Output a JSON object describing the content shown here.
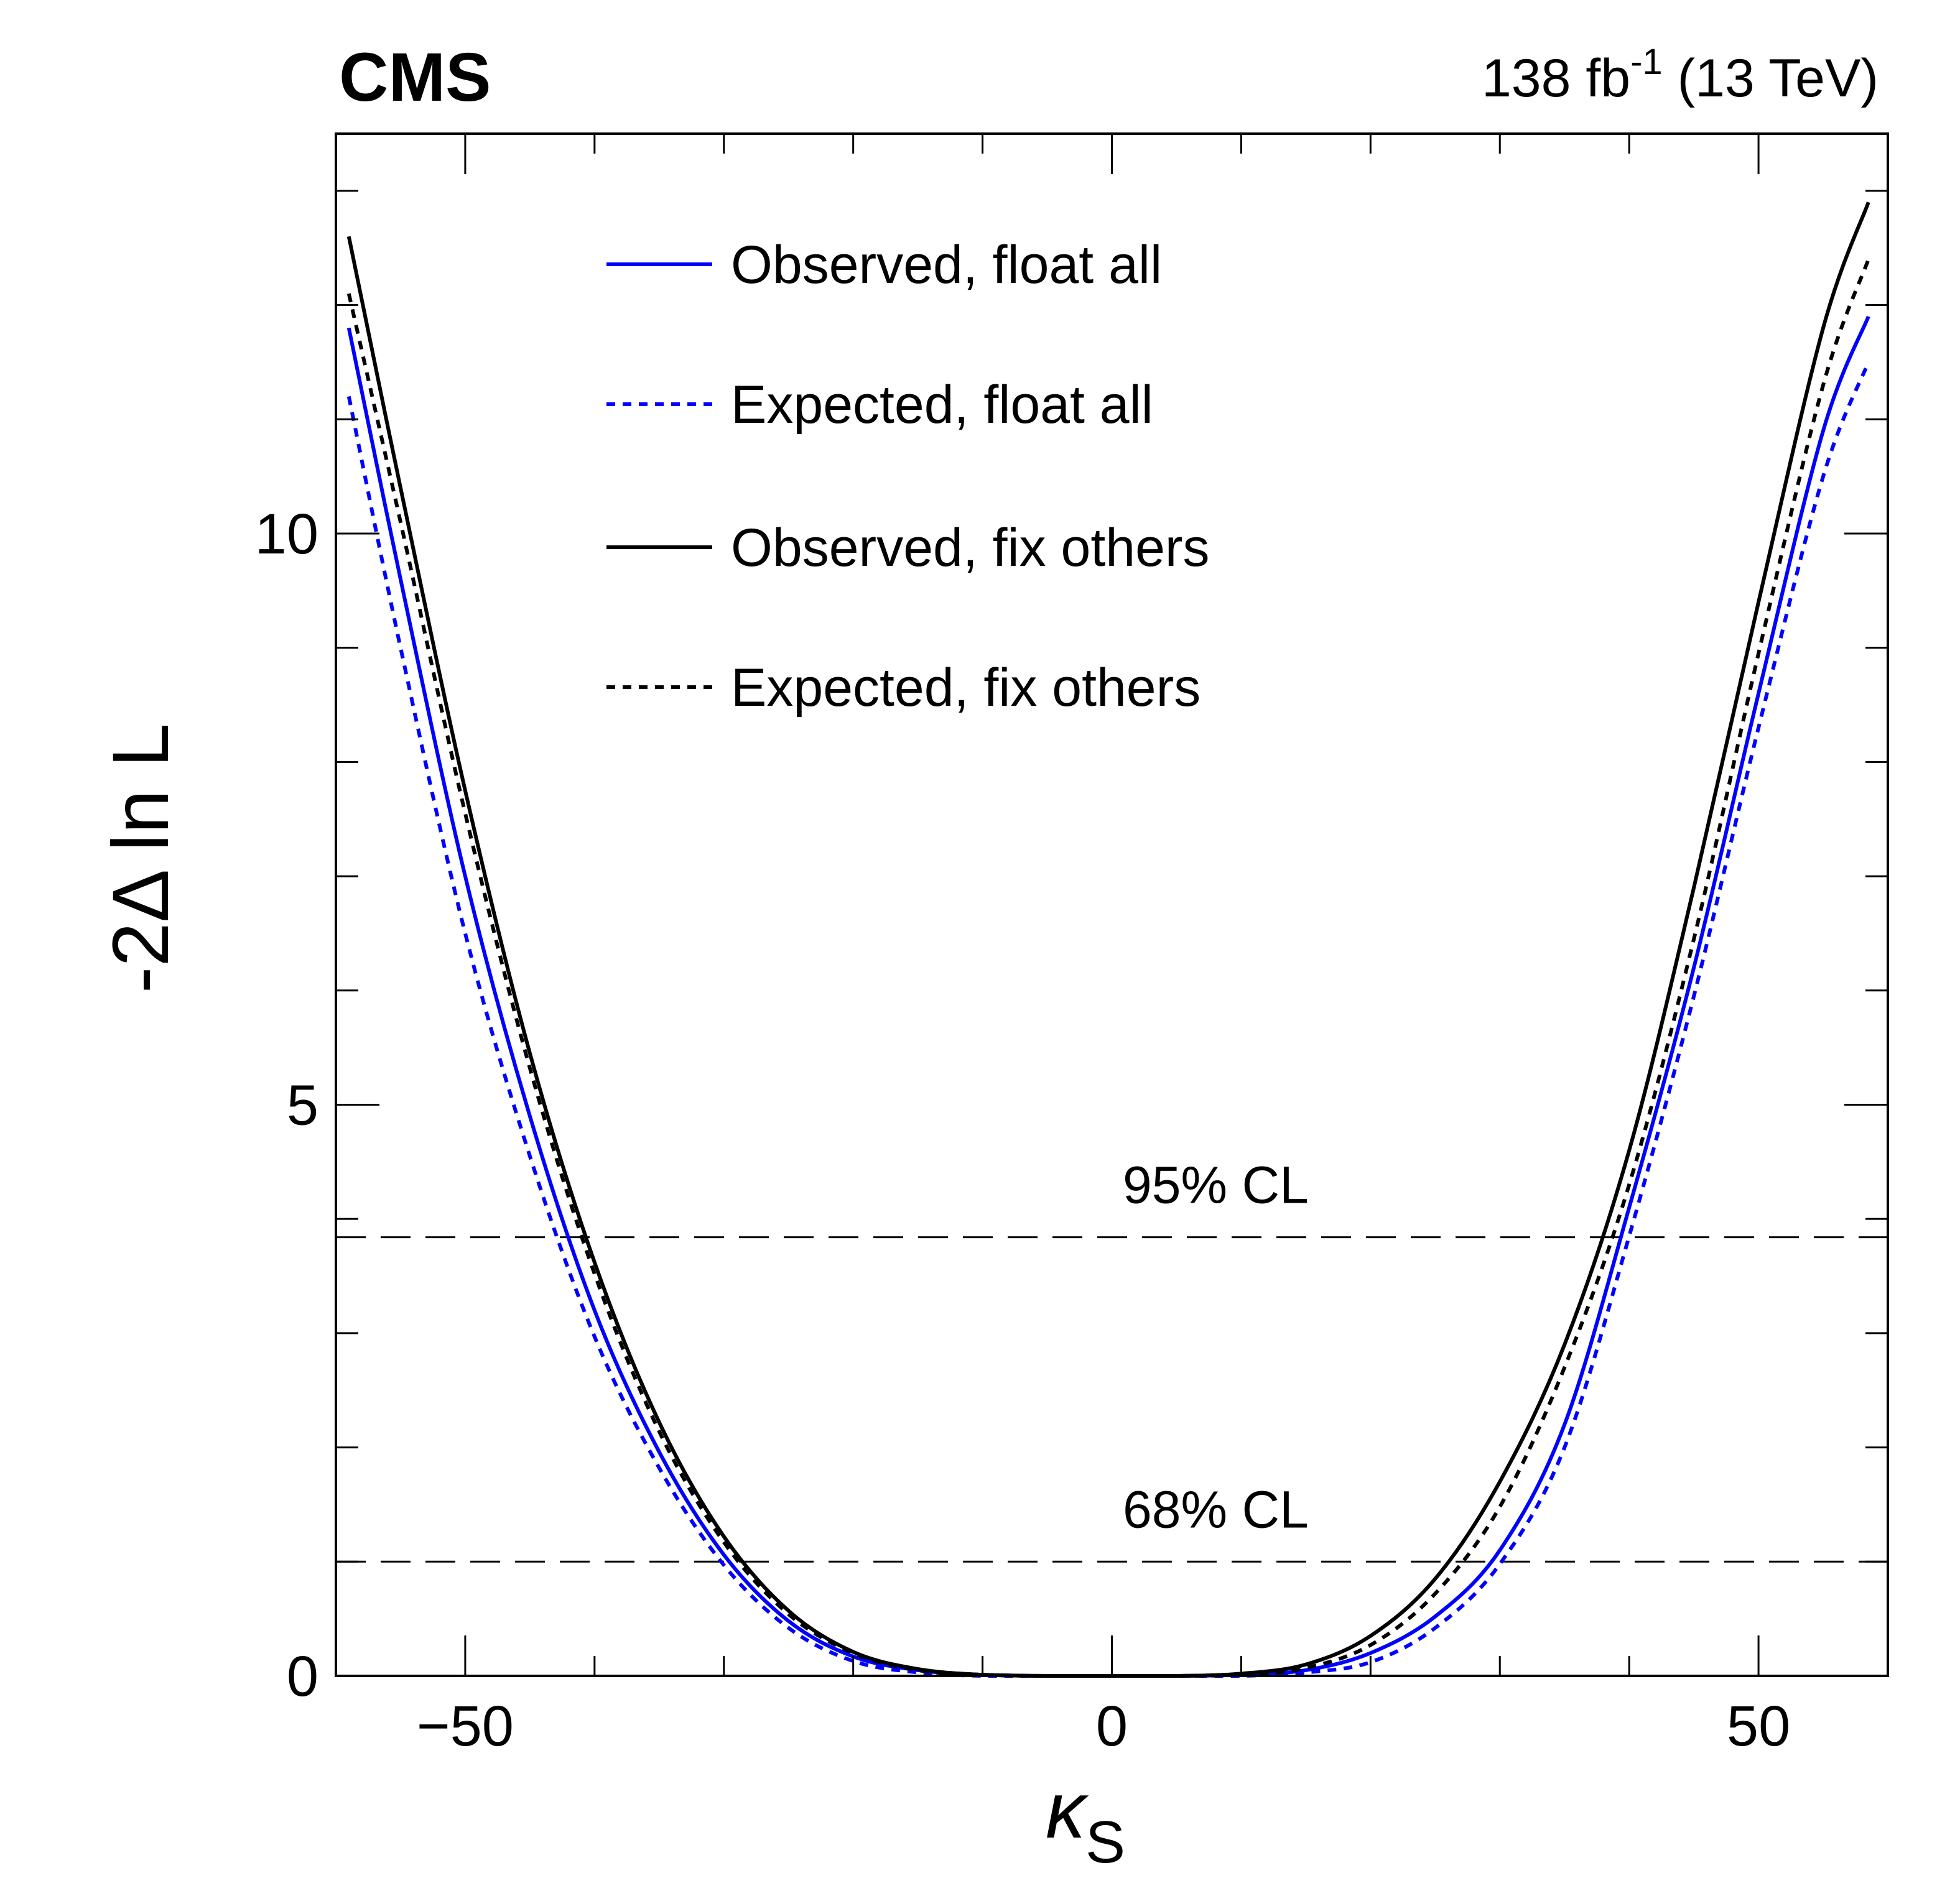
{
  "header": {
    "experiment": "CMS",
    "lumi_value": "138 fb",
    "lumi_exp": "-1",
    "energy": " (13 TeV)"
  },
  "chart_data": {
    "type": "line",
    "title": "",
    "xlabel_symbol": "κ",
    "xlabel_sub": "S",
    "ylabel": "-2Δ ln L",
    "xlim": [
      -60,
      60
    ],
    "ylim": [
      0,
      13.5
    ],
    "x_ticks": [
      {
        "value": -50,
        "label": "−50"
      },
      {
        "value": 0,
        "label": "0"
      },
      {
        "value": 50,
        "label": "50"
      }
    ],
    "y_ticks": [
      {
        "value": 0,
        "label": "0"
      },
      {
        "value": 5,
        "label": "5"
      },
      {
        "value": 10,
        "label": "10"
      }
    ],
    "reference_lines": [
      {
        "y": 1.0,
        "label": "68% CL"
      },
      {
        "y": 3.84,
        "label": "95% CL"
      }
    ],
    "legend_position": "top-center",
    "series": [
      {
        "name": "Observed, float all",
        "color": "#0000ff",
        "dash": "solid",
        "x": [
          -59,
          -55,
          -50,
          -45,
          -40,
          -35,
          -30,
          -25,
          -20,
          -15,
          -10,
          -5,
          0,
          5,
          10,
          15,
          20,
          25,
          30,
          35,
          40,
          45,
          50,
          55,
          58.5
        ],
        "y": [
          11.8,
          9.6,
          7.0,
          4.9,
          3.2,
          1.96,
          1.06,
          0.48,
          0.17,
          0.05,
          0.01,
          0.0,
          0.0,
          0.0,
          0.01,
          0.05,
          0.2,
          0.52,
          1.1,
          2.2,
          4.1,
          6.2,
          8.6,
          10.9,
          11.9
        ]
      },
      {
        "name": "Expected, float all",
        "color": "#0000ff",
        "dash": "dotted",
        "x": [
          -59,
          -55,
          -50,
          -45,
          -40,
          -35,
          -30,
          -25,
          -20,
          -15,
          -10,
          -5,
          0,
          5,
          10,
          15,
          20,
          25,
          30,
          35,
          40,
          45,
          50,
          55,
          58.5
        ],
        "y": [
          11.2,
          9.0,
          6.5,
          4.55,
          2.97,
          1.82,
          0.97,
          0.42,
          0.13,
          0.03,
          0.0,
          0.0,
          0.0,
          0.0,
          0.0,
          0.03,
          0.12,
          0.42,
          0.98,
          2.0,
          3.85,
          5.95,
          8.3,
          10.5,
          11.5
        ]
      },
      {
        "name": "Observed, fix others",
        "color": "#000000",
        "dash": "solid",
        "x": [
          -59,
          -55,
          -50,
          -45,
          -40,
          -35,
          -30,
          -25,
          -20,
          -15,
          -10,
          -5,
          0,
          5,
          10,
          15,
          20,
          25,
          30,
          35,
          40,
          45,
          50,
          55,
          58.5
        ],
        "y": [
          12.6,
          10.4,
          7.75,
          5.45,
          3.62,
          2.22,
          1.22,
          0.57,
          0.21,
          0.06,
          0.01,
          0.0,
          0.0,
          0.0,
          0.02,
          0.1,
          0.35,
          0.85,
          1.7,
          2.9,
          4.6,
          6.9,
          9.4,
          11.8,
          12.9
        ]
      },
      {
        "name": "Expected, fix others",
        "color": "#000000",
        "dash": "dotted",
        "x": [
          -59,
          -55,
          -50,
          -45,
          -40,
          -35,
          -30,
          -25,
          -20,
          -15,
          -10,
          -5,
          0,
          5,
          10,
          15,
          20,
          25,
          30,
          35,
          40,
          45,
          50,
          55,
          58.5
        ],
        "y": [
          12.1,
          10.1,
          7.55,
          5.32,
          3.52,
          2.14,
          1.17,
          0.54,
          0.2,
          0.05,
          0.01,
          0.0,
          0.0,
          0.0,
          0.01,
          0.07,
          0.27,
          0.72,
          1.48,
          2.7,
          4.3,
          6.45,
          8.95,
          11.3,
          12.4
        ]
      }
    ]
  }
}
